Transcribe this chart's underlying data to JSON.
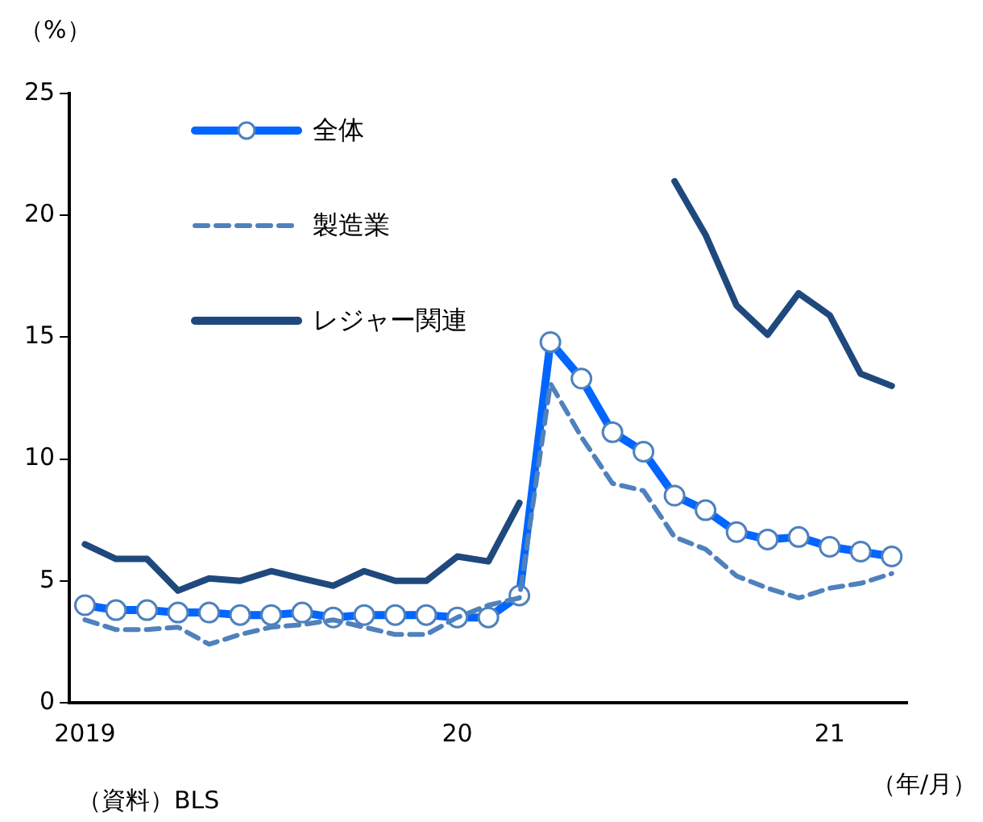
{
  "chart_data": {
    "type": "line",
    "ylabel": "（%）",
    "xlabel": "（年/月）",
    "annotations": [
      "（資料）BLS"
    ],
    "categories": [
      "2019",
      null,
      null,
      null,
      null,
      null,
      null,
      null,
      null,
      null,
      null,
      null,
      "20",
      null,
      null,
      null,
      null,
      null,
      null,
      null,
      null,
      null,
      null,
      null,
      "21",
      null,
      null
    ],
    "ylim": [
      0,
      25
    ],
    "yticks": [
      0,
      5,
      10,
      15,
      20,
      25
    ],
    "grid": false,
    "legend": "top left",
    "series": [
      {
        "name": "全体",
        "color": "#0066ff",
        "marker": "circle",
        "line_style": "solid",
        "values": [
          4.0,
          3.8,
          3.8,
          3.7,
          3.7,
          3.6,
          3.6,
          3.7,
          3.5,
          3.6,
          3.6,
          3.6,
          3.5,
          3.5,
          4.4,
          14.8,
          13.3,
          11.1,
          10.3,
          8.5,
          7.9,
          7.0,
          6.7,
          6.8,
          6.4,
          6.2,
          6.0
        ]
      },
      {
        "name": "製造業",
        "color": "#4f81bd",
        "marker": "none",
        "line_style": "dashed",
        "values": [
          3.4,
          3.0,
          3.0,
          3.1,
          2.4,
          2.8,
          3.1,
          3.2,
          3.4,
          3.1,
          2.8,
          2.8,
          3.5,
          4.0,
          4.3,
          13.1,
          10.9,
          9.0,
          8.7,
          6.8,
          6.3,
          5.2,
          4.7,
          4.3,
          4.7,
          4.9,
          5.3
        ]
      },
      {
        "name": "レジャー関連",
        "color": "#1f497d",
        "marker": "none",
        "line_style": "solid",
        "values": [
          6.5,
          5.9,
          5.9,
          4.6,
          5.1,
          5.0,
          5.4,
          5.1,
          4.8,
          5.4,
          5.0,
          5.0,
          6.0,
          5.8,
          8.2,
          null,
          null,
          null,
          null,
          21.4,
          19.2,
          16.3,
          15.1,
          16.8,
          15.9,
          13.5,
          13.0
        ]
      }
    ]
  }
}
